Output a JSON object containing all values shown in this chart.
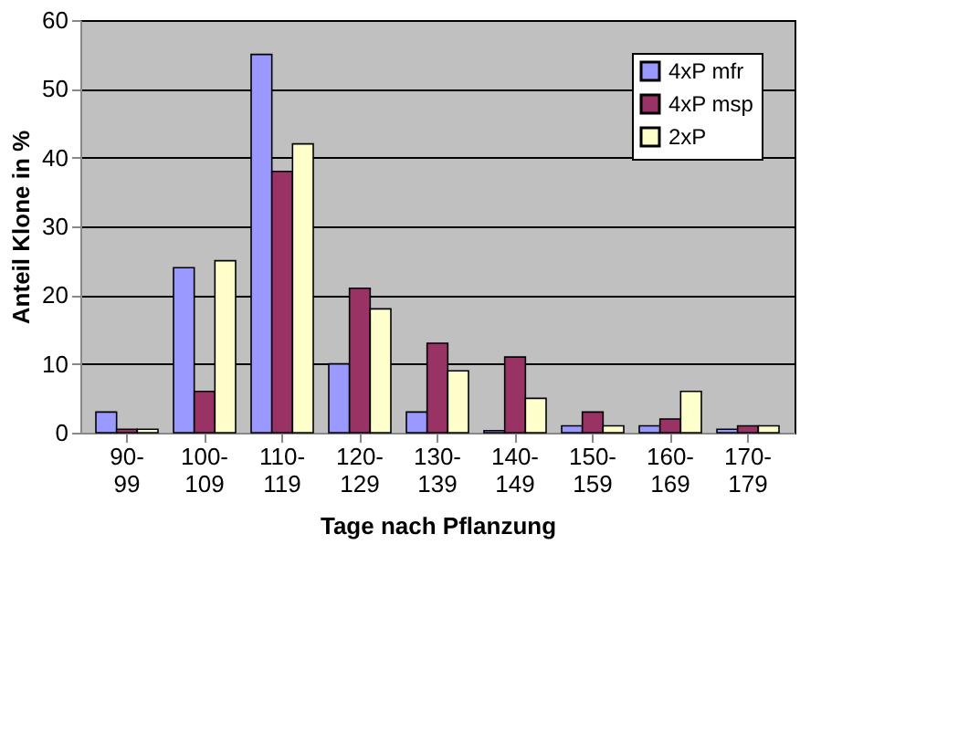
{
  "chart_data": {
    "type": "bar",
    "xlabel": "Tage nach Pflanzung",
    "ylabel": "Anteil Klone in %",
    "categories": [
      "90-99",
      "100-109",
      "110-119",
      "120-129",
      "130-139",
      "140-149",
      "150-159",
      "160-169",
      "170-179"
    ],
    "series": [
      {
        "name": "4xP mfr",
        "color": "#9999ff",
        "values": [
          3,
          24,
          55,
          10,
          3,
          0.3,
          1,
          1,
          0.5
        ]
      },
      {
        "name": "4xP msp",
        "color": "#993366",
        "values": [
          0.5,
          6,
          38,
          21,
          13,
          11,
          3,
          2,
          1
        ]
      },
      {
        "name": "2xP",
        "color": "#ffffcc",
        "values": [
          0.5,
          25,
          42,
          18,
          9,
          5,
          1,
          6,
          1
        ]
      }
    ],
    "ylim": [
      0,
      60
    ],
    "yticks": [
      0,
      10,
      20,
      30,
      40,
      50,
      60
    ],
    "grid": "y",
    "legend": "top right"
  }
}
